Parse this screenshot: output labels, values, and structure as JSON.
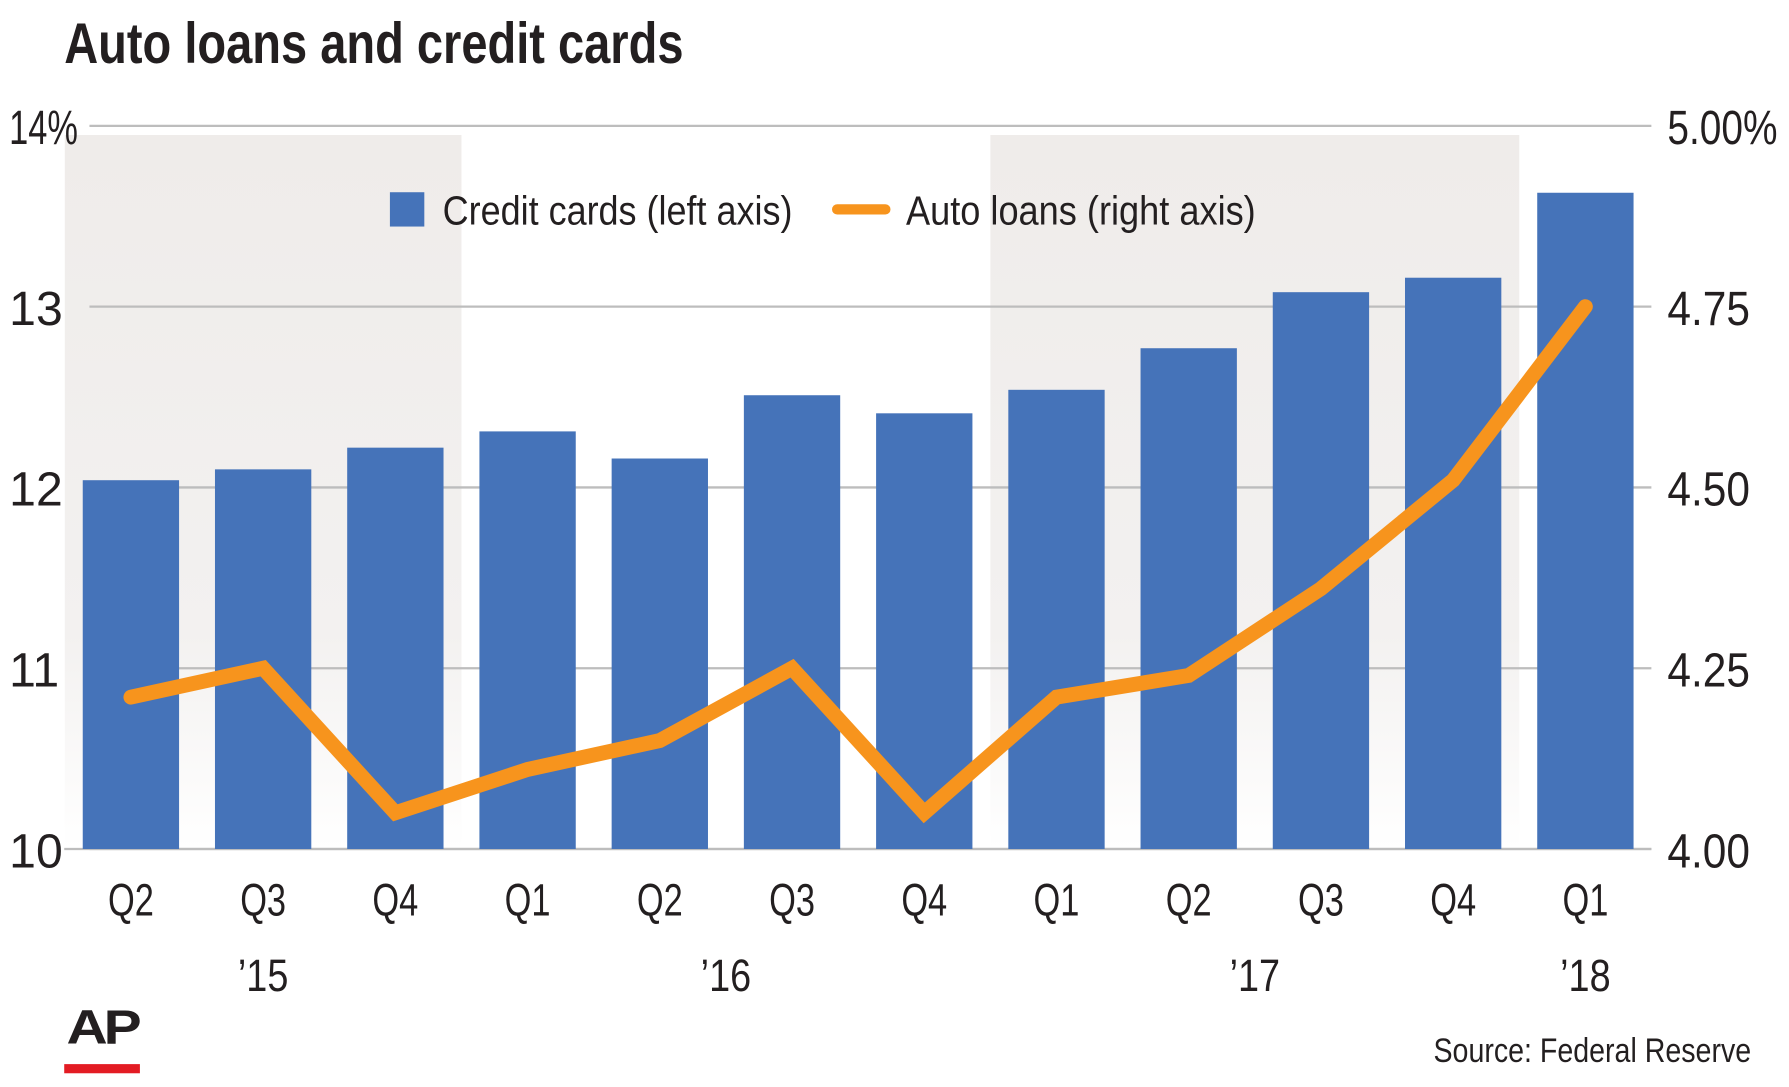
{
  "chart_data": {
    "type": "bar+line",
    "title": "Auto loans and credit cards",
    "categories": [
      "Q2",
      "Q3",
      "Q4",
      "Q1",
      "Q2",
      "Q3",
      "Q4",
      "Q1",
      "Q2",
      "Q3",
      "Q4",
      "Q1"
    ],
    "year_labels": [
      {
        "label": "’15",
        "category_index": 1
      },
      {
        "label": "’16",
        "category_index": 4.5
      },
      {
        "label": "’17",
        "category_index": 8.5
      },
      {
        "label": "’18",
        "category_index": 11
      }
    ],
    "shaded_years": [
      [
        0,
        2
      ],
      [
        7,
        10
      ]
    ],
    "left_axis": {
      "ylim": [
        10,
        14
      ],
      "ticks": [
        "10",
        "11",
        "12",
        "13",
        "14%"
      ]
    },
    "right_axis": {
      "ylim": [
        4.0,
        5.0
      ],
      "ticks": [
        "4.00",
        "4.25",
        "4.50",
        "4.75",
        "5.00%"
      ]
    },
    "grid": true,
    "legend_placement": "top-center",
    "series": [
      {
        "name": "Credit cards (left axis)",
        "type": "bar",
        "axis": "left",
        "color": "#4573b9",
        "values": [
          12.04,
          12.1,
          12.22,
          12.31,
          12.16,
          12.51,
          12.41,
          12.54,
          12.77,
          13.08,
          13.16,
          13.63
        ]
      },
      {
        "name": "Auto loans (right axis)",
        "type": "line",
        "axis": "right",
        "color": "#f7941d",
        "values": [
          4.21,
          4.25,
          4.05,
          4.11,
          4.15,
          4.25,
          4.05,
          4.21,
          4.24,
          4.36,
          4.51,
          4.75
        ]
      }
    ]
  },
  "logo": "AP",
  "source": "Source: Federal Reserve"
}
